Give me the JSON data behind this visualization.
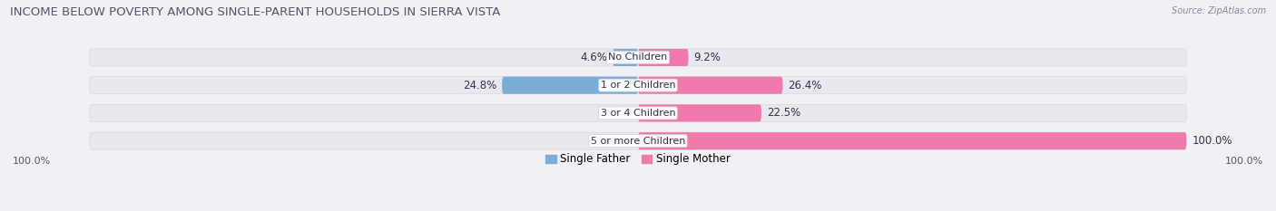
{
  "title": "INCOME BELOW POVERTY AMONG SINGLE-PARENT HOUSEHOLDS IN SIERRA VISTA",
  "source": "Source: ZipAtlas.com",
  "categories": [
    "No Children",
    "1 or 2 Children",
    "3 or 4 Children",
    "5 or more Children"
  ],
  "single_father": [
    4.6,
    24.8,
    0.0,
    0.0
  ],
  "single_mother": [
    9.2,
    26.4,
    22.5,
    100.0
  ],
  "father_color": "#7aaed6",
  "mother_color": "#f07aaa",
  "bar_bg_color": "#e8e8ee",
  "bar_bg_edge": "#d8d8e0",
  "background_color": "#f0f0f5",
  "max_value": 100.0,
  "bar_height": 0.62,
  "title_fontsize": 9.5,
  "label_fontsize": 8.5,
  "source_fontsize": 7,
  "category_fontsize": 8,
  "footer_fontsize": 8
}
